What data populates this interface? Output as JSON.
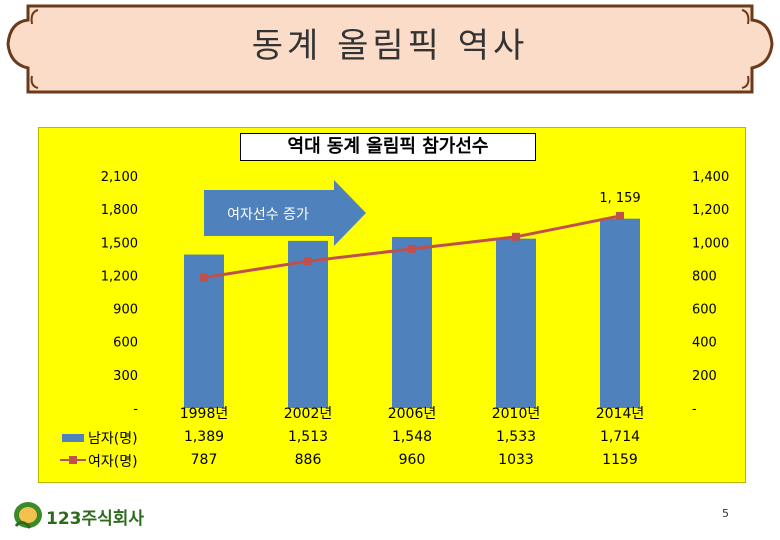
{
  "slide": {
    "title": "동계 올림픽 역사",
    "page_number": "5",
    "logo_text": "123주식회사",
    "colors": {
      "banner_fill": "#fadcc8",
      "panel_fill": "#ffff00",
      "bar": "#4f81bd",
      "line": "#c0504d"
    }
  },
  "chart_data": {
    "type": "bar",
    "title": "역대 동계 올림픽 참가선수",
    "categories": [
      "1998년",
      "2002년",
      "2006년",
      "2010년",
      "2014년"
    ],
    "series": [
      {
        "name": "남자(명)",
        "type": "bar",
        "axis": "left",
        "values": [
          1389,
          1513,
          1548,
          1533,
          1714
        ],
        "display": [
          "1,389",
          "1,513",
          "1,548",
          "1,533",
          "1,714"
        ]
      },
      {
        "name": "여자(명)",
        "type": "line",
        "axis": "right",
        "values": [
          787,
          886,
          960,
          1033,
          1159
        ],
        "display": [
          "787",
          "886",
          "960",
          "1033",
          "1159"
        ]
      }
    ],
    "y_left": {
      "min": 0,
      "max": 2100,
      "ticks": [
        "-",
        "300",
        "600",
        "900",
        "1,200",
        "1,500",
        "1,800",
        "2,100"
      ]
    },
    "y_right": {
      "min": 0,
      "max": 1400,
      "ticks": [
        "-",
        "200",
        "400",
        "600",
        "800",
        "1,000",
        "1,200",
        "1,400"
      ]
    },
    "point_label": "1, 159",
    "annotation": "여자선수 증가",
    "legend": "bottom-left data table"
  }
}
